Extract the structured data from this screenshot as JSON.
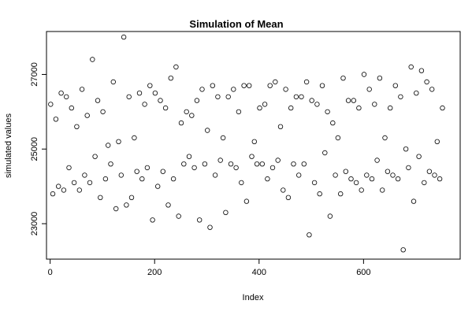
{
  "chart_data": {
    "type": "scatter",
    "title": "Simulation of Mean",
    "xlabel": "Index",
    "ylabel": "simulated values",
    "xlim": [
      -7,
      785
    ],
    "ylim": [
      22050,
      28150
    ],
    "xticks": [
      0,
      200,
      400,
      600
    ],
    "xtick_labels": [
      "0",
      "200",
      "400",
      "600"
    ],
    "yticks": [
      23000,
      25000,
      27000
    ],
    "ytick_labels": [
      "23000",
      "25000",
      "27000"
    ],
    "grid": false,
    "legend": "none",
    "marker": "open-circle",
    "n_points": 755,
    "x": [
      1,
      11,
      21,
      31,
      41,
      51,
      61,
      71,
      81,
      91,
      101,
      111,
      121,
      131,
      141,
      151,
      161,
      171,
      181,
      191,
      201,
      211,
      221,
      231,
      241,
      251,
      261,
      271,
      281,
      291,
      301,
      311,
      321,
      331,
      341,
      351,
      361,
      371,
      381,
      391,
      401,
      411,
      421,
      431,
      441,
      451,
      461,
      471,
      481,
      491,
      501,
      511,
      521,
      531,
      541,
      551,
      561,
      571,
      581,
      591,
      601,
      611,
      621,
      631,
      641,
      651,
      661,
      671,
      681,
      691,
      701,
      711,
      721,
      731,
      741,
      751,
      5,
      16,
      26,
      36,
      46,
      56,
      66,
      76,
      86,
      96,
      106,
      116,
      126,
      136,
      146,
      156,
      166,
      176,
      186,
      196,
      206,
      216,
      226,
      236,
      246,
      256,
      266,
      276,
      286,
      296,
      306,
      316,
      326,
      336,
      346,
      356,
      366,
      376,
      386,
      396,
      406,
      416,
      426,
      436,
      446,
      456,
      466,
      476,
      486,
      496,
      506,
      516,
      526,
      536,
      546,
      556,
      566,
      576,
      586,
      596,
      606,
      616,
      626,
      636,
      646,
      656,
      666,
      676,
      686,
      696,
      706,
      716,
      726,
      736,
      746
    ],
    "y": [
      26200,
      25800,
      26500,
      26400,
      26100,
      25600,
      26600,
      25900,
      27400,
      26300,
      26000,
      25100,
      26800,
      25200,
      28000,
      26400,
      25300,
      26500,
      26200,
      26700,
      26500,
      26300,
      26100,
      26900,
      27200,
      25700,
      26000,
      25900,
      26300,
      26600,
      25500,
      26700,
      26400,
      25300,
      26400,
      26600,
      26000,
      26700,
      26700,
      25200,
      26100,
      26200,
      26700,
      26800,
      25600,
      26600,
      26100,
      26400,
      26400,
      26800,
      26300,
      26200,
      26700,
      26000,
      25700,
      25300,
      26900,
      26300,
      26300,
      26100,
      27000,
      26600,
      26200,
      26900,
      25300,
      26100,
      26700,
      26400,
      25000,
      27200,
      26500,
      27100,
      26800,
      26600,
      25200,
      26100,
      23800,
      24000,
      23900,
      24500,
      24100,
      23900,
      24300,
      24100,
      24800,
      23700,
      24200,
      24600,
      23400,
      24300,
      23500,
      23700,
      24400,
      24200,
      24500,
      23100,
      24000,
      24400,
      23500,
      24200,
      23200,
      24600,
      24800,
      24500,
      23100,
      24600,
      22900,
      24300,
      24700,
      23300,
      24600,
      24500,
      24100,
      23600,
      24800,
      24600,
      24600,
      24200,
      24500,
      24700,
      23900,
      23700,
      24600,
      24300,
      24600,
      22700,
      24100,
      23800,
      24900,
      23200,
      24300,
      23800,
      24400,
      24200,
      24100,
      23900,
      24300,
      24200,
      24700,
      23900,
      24400,
      24300,
      24200,
      22300,
      24500,
      23600,
      24800,
      24100,
      24400,
      24300,
      24200
    ]
  }
}
